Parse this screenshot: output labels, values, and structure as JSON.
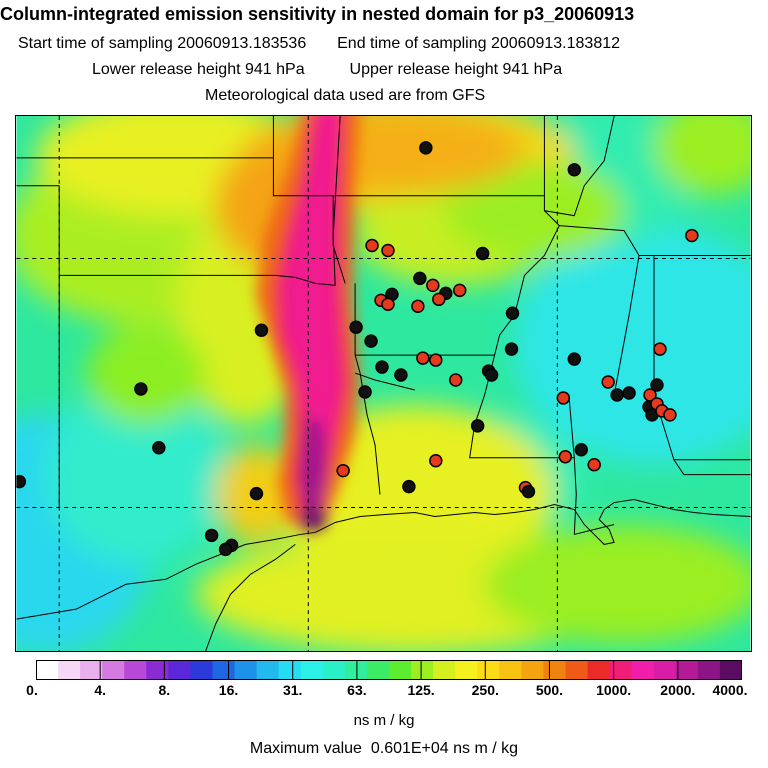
{
  "header": {
    "title": "Column-integrated emission sensitivity in nested domain for p3_20060913",
    "start_label": "Start time of sampling",
    "start_value": "20060913.183536",
    "end_label": "End time of sampling",
    "end_value": "20060913.183812",
    "lower_label": "Lower release height",
    "lower_value": "941 hPa",
    "upper_label": "Upper release height",
    "upper_value": "941 hPa",
    "met_line": "Meteorological data used are from GFS"
  },
  "colorbar": {
    "tick_labels": [
      "0.",
      "4.",
      "8.",
      "16.",
      "31.",
      "63.",
      "125.",
      "250.",
      "500.",
      "1000.",
      "2000.",
      "4000."
    ],
    "unit_label": "ns m / kg",
    "colors": [
      "#ffffff",
      "#f6d8f6",
      "#eab0ee",
      "#d47ae0",
      "#b848d8",
      "#8c2ad4",
      "#5a28d8",
      "#2c3adc",
      "#1e66e2",
      "#1e92e8",
      "#22baee",
      "#26dcf2",
      "#2af0e8",
      "#2af0c8",
      "#30ee9c",
      "#3cec64",
      "#5cec30",
      "#9cee22",
      "#d4f020",
      "#f6f01e",
      "#fcdc18",
      "#f8c212",
      "#f4a40e",
      "#f08210",
      "#f05a18",
      "#ec2a2a",
      "#f01e78",
      "#f01ea8",
      "#d81ea6",
      "#b41a96",
      "#8c1484",
      "#5c0c60"
    ]
  },
  "max_value": {
    "label": "Maximum value",
    "value": "0.601E+04",
    "unit": "ns m / kg"
  }
}
